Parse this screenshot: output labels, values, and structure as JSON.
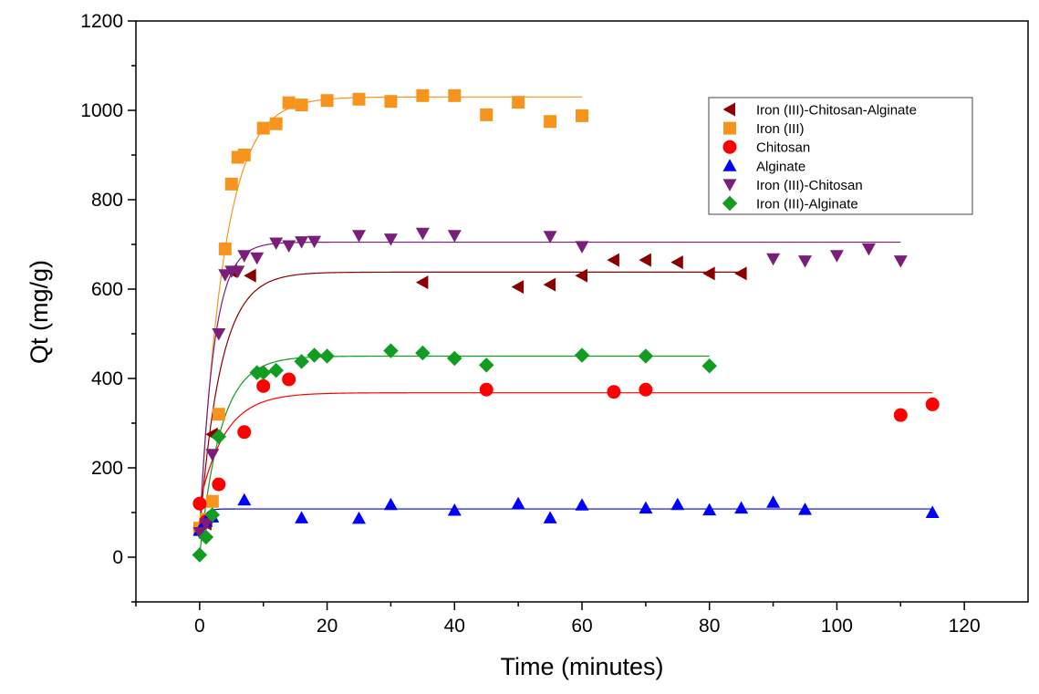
{
  "chart_data": {
    "type": "scatter",
    "title": "",
    "xlabel": "Time (minutes)",
    "ylabel": "Qt (mg/g)",
    "xlim": [
      -10,
      130
    ],
    "ylim": [
      -100,
      1200
    ],
    "xticks": [
      0,
      20,
      40,
      60,
      80,
      100,
      120
    ],
    "yticks": [
      0,
      200,
      400,
      600,
      800,
      1000,
      1200
    ],
    "grid": false,
    "legend_position": "top-right",
    "series": [
      {
        "name": "Iron (III)-Chitosan-Alginate",
        "marker": "triangle-left",
        "color": "#8b0000",
        "points": [
          [
            0,
            60
          ],
          [
            1,
            75
          ],
          [
            2,
            275
          ],
          [
            5,
            640
          ],
          [
            8,
            630
          ],
          [
            35,
            615
          ],
          [
            50,
            605
          ],
          [
            55,
            610
          ],
          [
            60,
            630
          ],
          [
            65,
            665
          ],
          [
            70,
            665
          ],
          [
            75,
            660
          ],
          [
            80,
            635
          ],
          [
            85,
            635
          ]
        ],
        "fit": {
          "x_end": 85,
          "qe": 638,
          "k": 0.3
        }
      },
      {
        "name": "Iron (III)",
        "marker": "square",
        "color": "#f7941d",
        "points": [
          [
            0,
            65
          ],
          [
            1,
            85
          ],
          [
            2,
            125
          ],
          [
            3,
            320
          ],
          [
            4,
            690
          ],
          [
            5,
            835
          ],
          [
            6,
            895
          ],
          [
            7,
            900
          ],
          [
            10,
            960
          ],
          [
            12,
            970
          ],
          [
            14,
            1017
          ],
          [
            16,
            1012
          ],
          [
            20,
            1022
          ],
          [
            25,
            1025
          ],
          [
            30,
            1020
          ],
          [
            35,
            1033
          ],
          [
            40,
            1033
          ],
          [
            45,
            990
          ],
          [
            50,
            1018
          ],
          [
            55,
            975
          ],
          [
            60,
            988
          ]
        ],
        "fit": {
          "x_end": 60,
          "qe": 1030,
          "k": 0.26
        }
      },
      {
        "name": "Chitosan",
        "marker": "circle",
        "color": "#ff0000",
        "points": [
          [
            0,
            120
          ],
          [
            1,
            80
          ],
          [
            3,
            163
          ],
          [
            7,
            280
          ],
          [
            10,
            383
          ],
          [
            14,
            398
          ],
          [
            45,
            375
          ],
          [
            65,
            370
          ],
          [
            70,
            375
          ],
          [
            110,
            318
          ],
          [
            115,
            342
          ]
        ],
        "fit": {
          "x_end": 115,
          "qe": 368,
          "k": 0.25
        }
      },
      {
        "name": "Alginate",
        "marker": "triangle-up",
        "color": "#0000ff",
        "points": [
          [
            0,
            60
          ],
          [
            1,
            80
          ],
          [
            2,
            90
          ],
          [
            7,
            128
          ],
          [
            16,
            88
          ],
          [
            25,
            87
          ],
          [
            30,
            118
          ],
          [
            40,
            105
          ],
          [
            50,
            120
          ],
          [
            55,
            88
          ],
          [
            60,
            117
          ],
          [
            70,
            110
          ],
          [
            75,
            118
          ],
          [
            80,
            106
          ],
          [
            85,
            110
          ],
          [
            90,
            123
          ],
          [
            95,
            107
          ],
          [
            115,
            100
          ]
        ],
        "fit": {
          "x_end": 115,
          "qe": 108,
          "k": 1.5
        }
      },
      {
        "name": "Iron (III)-Chitosan",
        "marker": "triangle-down",
        "color": "#7b1e7a",
        "points": [
          [
            0,
            55
          ],
          [
            1,
            75
          ],
          [
            2,
            230
          ],
          [
            3,
            500
          ],
          [
            4,
            632
          ],
          [
            5,
            640
          ],
          [
            6,
            640
          ],
          [
            7,
            675
          ],
          [
            9,
            670
          ],
          [
            12,
            703
          ],
          [
            14,
            697
          ],
          [
            16,
            706
          ],
          [
            18,
            707
          ],
          [
            25,
            720
          ],
          [
            30,
            712
          ],
          [
            35,
            725
          ],
          [
            40,
            720
          ],
          [
            55,
            718
          ],
          [
            60,
            695
          ],
          [
            90,
            668
          ],
          [
            95,
            663
          ],
          [
            100,
            675
          ],
          [
            105,
            690
          ],
          [
            110,
            663
          ]
        ],
        "fit": {
          "x_end": 110,
          "qe": 705,
          "k": 0.45
        }
      },
      {
        "name": "Iron (III)-Alginate",
        "marker": "diamond",
        "color": "#129c22",
        "points": [
          [
            0,
            5
          ],
          [
            1,
            45
          ],
          [
            2,
            95
          ],
          [
            3,
            270
          ],
          [
            9,
            413
          ],
          [
            10,
            413
          ],
          [
            12,
            418
          ],
          [
            16,
            438
          ],
          [
            18,
            452
          ],
          [
            20,
            450
          ],
          [
            30,
            462
          ],
          [
            35,
            457
          ],
          [
            40,
            445
          ],
          [
            45,
            430
          ],
          [
            60,
            452
          ],
          [
            70,
            450
          ],
          [
            80,
            428
          ]
        ],
        "fit": {
          "x_end": 80,
          "qe": 450,
          "k": 0.3
        }
      }
    ]
  }
}
